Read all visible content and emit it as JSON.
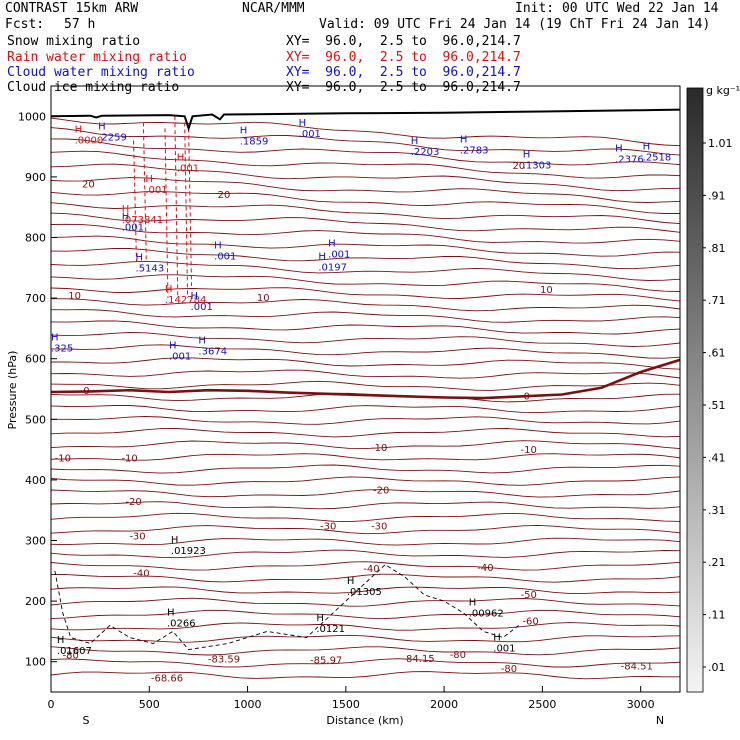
{
  "header": {
    "model": "CONTRAST 15km ARW",
    "org": "NCAR/MMM",
    "init": "Init: 00 UTC Wed 22 Jan 14",
    "fcst_label": "Fcst:",
    "fcst_value": "57 h",
    "valid": "Valid: 09 UTC Fri 24 Jan 14 (19 ChT Fri 24 Jan 14)"
  },
  "fields": [
    {
      "name": "Snow mixing ratio",
      "xy": "XY=  96.0,  2.5 to  96.0,214.7",
      "color": "#000000"
    },
    {
      "name": "Rain water mixing ratio",
      "xy": "XY=  96.0,  2.5 to  96.0,214.7",
      "color": "#dd1111"
    },
    {
      "name": "Cloud water mixing ratio",
      "xy": "XY=  96.0,  2.5 to  96.0,214.7",
      "color": "#1111cc"
    },
    {
      "name": "Cloud ice mixing ratio",
      "xy": "XY=  96.0,  2.5 to  96.0,214.7",
      "color": "#000000"
    }
  ],
  "chart_data": {
    "type": "cross-section",
    "xlabel": "Distance (km)",
    "ylabel": "Pressure (hPa)",
    "xlim": [
      0,
      3200
    ],
    "ylim": [
      1050,
      50
    ],
    "x_ticks": [
      0,
      500,
      1000,
      1500,
      2000,
      2500,
      3000
    ],
    "y_ticks": [
      100,
      200,
      300,
      400,
      500,
      600,
      700,
      800,
      900,
      1000
    ],
    "end_labels": {
      "left": "S",
      "right": "N"
    },
    "colorbar": {
      "unit": "g kg⁻¹",
      "ticks": [
        "1.01",
        ".91",
        ".81",
        ".71",
        ".61",
        ".51",
        ".41",
        ".31",
        ".21",
        ".11",
        ".01"
      ]
    },
    "temperature_contours": {
      "color": "#7a1010",
      "freezing_level_color": "#7a1010",
      "labels": [
        {
          "text": "-80",
          "x": 100,
          "p": 112
        },
        {
          "text": "-80",
          "x": 2330,
          "p": 90
        },
        {
          "text": "-80",
          "x": 2070,
          "p": 113
        },
        {
          "text": "-68.66",
          "x": 590,
          "p": 74
        },
        {
          "text": "-83.59",
          "x": 880,
          "p": 105
        },
        {
          "text": "-85.97",
          "x": 1400,
          "p": 104
        },
        {
          "text": "-84.15",
          "x": 1870,
          "p": 106
        },
        {
          "text": "-84.51",
          "x": 2980,
          "p": 94
        },
        {
          "text": "-60",
          "x": 2440,
          "p": 168
        },
        {
          "text": "-50",
          "x": 2430,
          "p": 212
        },
        {
          "text": "-40",
          "x": 460,
          "p": 247
        },
        {
          "text": "-40",
          "x": 1630,
          "p": 255
        },
        {
          "text": "-40",
          "x": 2210,
          "p": 256
        },
        {
          "text": "-30",
          "x": 440,
          "p": 308
        },
        {
          "text": "-30",
          "x": 1410,
          "p": 325
        },
        {
          "text": "-30",
          "x": 1670,
          "p": 325
        },
        {
          "text": "-20",
          "x": 420,
          "p": 365
        },
        {
          "text": "-20",
          "x": 1680,
          "p": 384
        },
        {
          "text": "-10",
          "x": 60,
          "p": 437
        },
        {
          "text": "-10",
          "x": 400,
          "p": 437
        },
        {
          "text": "-10",
          "x": 1670,
          "p": 454
        },
        {
          "text": "-10",
          "x": 2430,
          "p": 451
        },
        {
          "text": "0",
          "x": 180,
          "p": 548
        },
        {
          "text": "0",
          "x": 2420,
          "p": 539
        },
        {
          "text": "10",
          "x": 120,
          "p": 705
        },
        {
          "text": "10",
          "x": 1080,
          "p": 702
        },
        {
          "text": "10",
          "x": 2520,
          "p": 715
        },
        {
          "text": "20",
          "x": 190,
          "p": 889
        },
        {
          "text": "20",
          "x": 880,
          "p": 872
        },
        {
          "text": "20",
          "x": 2380,
          "p": 920
        }
      ]
    },
    "maxima_labels": [
      {
        "text": "H",
        "value": ".01607",
        "x": 30,
        "p": 121,
        "color": "#000000"
      },
      {
        "text": "H",
        "value": ".0266",
        "x": 590,
        "p": 166,
        "color": "#000000"
      },
      {
        "text": "H",
        "value": ".0121",
        "x": 1350,
        "p": 157,
        "color": "#000000"
      },
      {
        "text": "H",
        "value": ".01305",
        "x": 1505,
        "p": 218,
        "color": "#000000"
      },
      {
        "text": "H",
        "value": ".00962",
        "x": 2125,
        "p": 183,
        "color": "#000000"
      },
      {
        "text": "H",
        "value": ".001",
        "x": 2250,
        "p": 125,
        "color": "#000000"
      },
      {
        "text": "H",
        "value": ".01923",
        "x": 610,
        "p": 286,
        "color": "#000000"
      },
      {
        "text": "H",
        "value": ".3674",
        "x": 750,
        "p": 615,
        "color": "#1111cc"
      },
      {
        "text": "H",
        "value": ".001",
        "x": 600,
        "p": 607,
        "color": "#1111cc"
      },
      {
        "text": "H",
        "value": ".325",
        "x": 0,
        "p": 620,
        "color": "#1111cc"
      },
      {
        "text": "H",
        "value": ".142784",
        "x": 580,
        "p": 700,
        "color": "#dd1111"
      },
      {
        "text": "H",
        "value": ".001",
        "x": 710,
        "p": 689,
        "color": "#1111cc"
      },
      {
        "text": "H",
        "value": ".5143",
        "x": 430,
        "p": 752,
        "color": "#1111cc"
      },
      {
        "text": "H",
        "value": ".001",
        "x": 830,
        "p": 772,
        "color": "#1111cc"
      },
      {
        "text": "H",
        "value": ".0197",
        "x": 1360,
        "p": 754,
        "color": "#1111cc"
      },
      {
        "text": "H",
        "value": ".001",
        "x": 1410,
        "p": 775,
        "color": "#1111cc"
      },
      {
        "text": "H",
        "value": ".073841",
        "x": 360,
        "p": 832,
        "color": "#dd1111"
      },
      {
        "text": "H",
        "value": ".001",
        "x": 360,
        "p": 820,
        "color": "#1111cc"
      },
      {
        "text": "H",
        "value": ".001",
        "x": 480,
        "p": 882,
        "color": "#dd1111"
      },
      {
        "text": "H",
        "value": ".001",
        "x": 640,
        "p": 917,
        "color": "#dd1111"
      },
      {
        "text": "H",
        "value": ".0000",
        "x": 120,
        "p": 963,
        "color": "#dd1111"
      },
      {
        "text": "H",
        "value": ".2259",
        "x": 240,
        "p": 968,
        "color": "#1111cc"
      },
      {
        "text": "H",
        "value": ".1859",
        "x": 960,
        "p": 962,
        "color": "#1111cc"
      },
      {
        "text": "H",
        "value": ".001",
        "x": 1260,
        "p": 974,
        "color": "#1111cc"
      },
      {
        "text": "H",
        "value": ".2203",
        "x": 1830,
        "p": 944,
        "color": "#1111cc"
      },
      {
        "text": "H",
        "value": ".2783",
        "x": 2080,
        "p": 947,
        "color": "#1111cc"
      },
      {
        "text": "H",
        "value": ".1303",
        "x": 2400,
        "p": 922,
        "color": "#1111cc"
      },
      {
        "text": "H",
        "value": ".2376",
        "x": 2870,
        "p": 932,
        "color": "#1111cc"
      },
      {
        "text": "H",
        "value": ".2518",
        "x": 3010,
        "p": 935,
        "color": "#1111cc"
      }
    ]
  }
}
